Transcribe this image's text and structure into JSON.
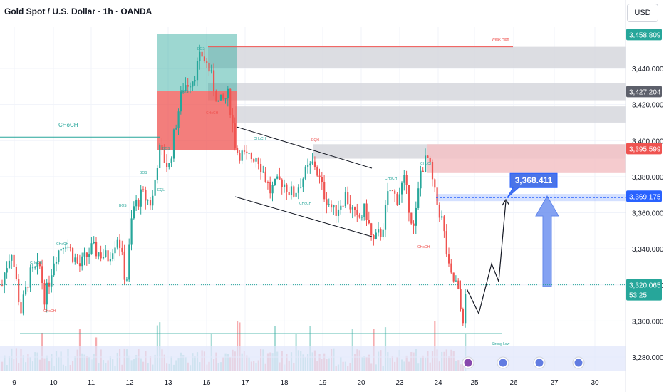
{
  "header": {
    "title": "Gold Spot / U.S. Dollar · 1h · OANDA",
    "currency": "USD"
  },
  "colors": {
    "up": "#26a69a",
    "down": "#ef5350",
    "supply_zone": "#d1d4dc",
    "red_zone": "#f7c5c9",
    "blue_zone": "#2962ff",
    "annotation_blue": "#2962ff"
  },
  "chart_data": {
    "type": "candlestick",
    "title": "Gold Spot / U.S. Dollar · 1h · OANDA",
    "x_ticks": [
      "9",
      "10",
      "11",
      "12",
      "13",
      "16",
      "17",
      "18",
      "19",
      "20",
      "23",
      "24",
      "25",
      "26",
      "27",
      "30"
    ],
    "y_ticks": [
      "3,280.000",
      "3,300.000",
      "3,320.000",
      "3,340.000",
      "3,360.000",
      "3,380.000",
      "3,400.000",
      "3,420.000",
      "3,440.000"
    ],
    "ylim": [
      3270,
      3470
    ],
    "price_labels": [
      {
        "text": "3,458.809",
        "value": 3458.809,
        "color": "#26a69a"
      },
      {
        "text": "3,427.204",
        "value": 3427.204,
        "color": "#5d606b"
      },
      {
        "text": "3,395.599",
        "value": 3395.599,
        "color": "#ef5350"
      },
      {
        "text": "3,369.175",
        "value": 3369.175,
        "color": "#2962ff"
      },
      {
        "text": "3,320.065",
        "value": 3320.065,
        "color": "#26a69a",
        "sub": "53:25"
      }
    ],
    "target_callout": {
      "text": "3,368.411",
      "value": 3368.411
    },
    "annotations": {
      "choch_left": "CHoCH",
      "weak_high": "Weak High",
      "strong_low": "Strong Low",
      "bos": "BOS",
      "eql": "EQL",
      "eqh": "EQH",
      "choch": "CHoCH"
    },
    "levels": {
      "weak_high": 3452,
      "strong_low": 3293,
      "choch_left": 3402,
      "current": 3320.065
    },
    "grid": true,
    "series_note": "hourly OHLC candles with volume histogram"
  }
}
